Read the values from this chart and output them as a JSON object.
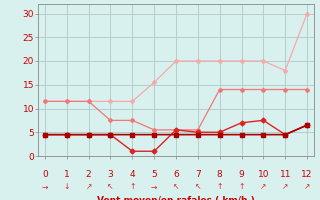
{
  "x": [
    0,
    1,
    2,
    3,
    4,
    5,
    6,
    7,
    8,
    9,
    10,
    11,
    12
  ],
  "line1": [
    11.5,
    11.5,
    11.5,
    11.5,
    11.5,
    15.5,
    20.0,
    20.0,
    20.0,
    20.0,
    20.0,
    18.0,
    30.0
  ],
  "line2": [
    11.5,
    11.5,
    11.5,
    7.5,
    7.5,
    5.5,
    5.5,
    5.5,
    14.0,
    14.0,
    14.0,
    14.0,
    14.0
  ],
  "line3": [
    4.5,
    4.5,
    4.5,
    4.5,
    1.0,
    1.0,
    5.5,
    5.0,
    5.0,
    7.0,
    7.5,
    4.5,
    6.5
  ],
  "line4": [
    4.5,
    4.5,
    4.5,
    4.5,
    4.5,
    4.5,
    4.5,
    4.5,
    4.5,
    4.5,
    4.5,
    4.5,
    6.5
  ],
  "color_light": "#f5aaaa",
  "color_mid": "#f07878",
  "color_dark": "#dd2222",
  "color_solid": "#aa0000",
  "bg_color": "#d8f0ee",
  "grid_color": "#b0c8c8",
  "xlabel": "Vent moyen/en rafales ( km/h )",
  "xlabel_color": "#cc0000",
  "tick_color": "#cc0000",
  "ylim": [
    0,
    32
  ],
  "xlim": [
    -0.3,
    12.3
  ],
  "yticks": [
    0,
    5,
    10,
    15,
    20,
    25,
    30
  ],
  "xticks": [
    0,
    1,
    2,
    3,
    4,
    5,
    6,
    7,
    8,
    9,
    10,
    11,
    12
  ],
  "wind_dirs": [
    "→",
    "↓",
    "↗",
    "↖",
    "↑",
    "→",
    "↖",
    "↖",
    "↑",
    "↑",
    "↗",
    "↗",
    "↗"
  ]
}
